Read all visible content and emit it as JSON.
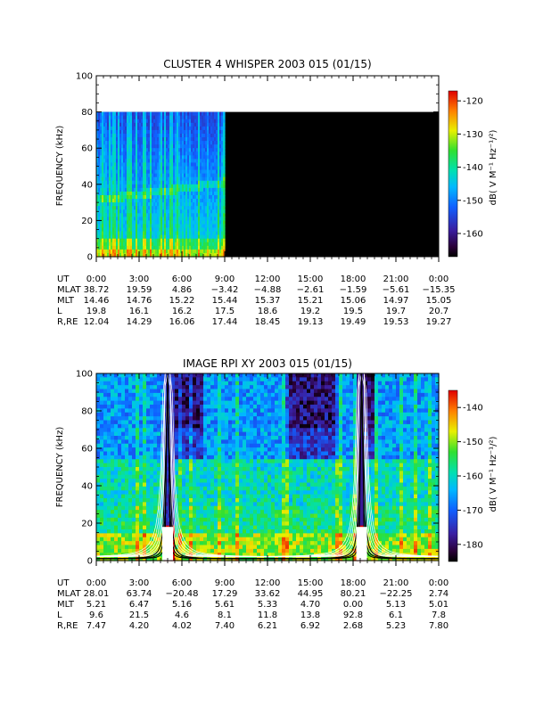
{
  "chart_data": [
    {
      "type": "heatmap",
      "title": "CLUSTER 4 WHISPER 2003 015 (01/15)",
      "ylabel": "FREQUENCY (kHz)",
      "ylim": [
        0,
        100
      ],
      "yticks": [
        "0",
        "20",
        "40",
        "60",
        "80",
        "100"
      ],
      "xlim_hours": [
        0,
        24
      ],
      "xticks": [
        "0:00",
        "3:00",
        "6:00",
        "9:00",
        "12:00",
        "15:00",
        "18:00",
        "21:00",
        "0:00"
      ],
      "data_extent": {
        "hours": [
          0,
          9
        ],
        "freq_khz": [
          0,
          80
        ]
      },
      "colorbar": {
        "label": "dB( V M⁻¹ Hz⁻¹/²)",
        "range": [
          -167,
          -117
        ],
        "ticks": [
          "-120",
          "-130",
          "-140",
          "-150",
          "-160"
        ]
      },
      "ephemeris": {
        "rows": [
          {
            "label": "UT",
            "values": [
              "0:00",
              "3:00",
              "6:00",
              "9:00",
              "12:00",
              "15:00",
              "18:00",
              "21:00",
              "0:00"
            ]
          },
          {
            "label": "MLAT",
            "values": [
              "38.72",
              "19.59",
              "4.86",
              "-3.42",
              "-4.88",
              "-2.61",
              "-1.59",
              "-5.61",
              "-15.35"
            ]
          },
          {
            "label": "MLT",
            "values": [
              "14.46",
              "14.76",
              "15.22",
              "15.44",
              "15.37",
              "15.21",
              "15.06",
              "14.97",
              "15.05"
            ]
          },
          {
            "label": "L",
            "values": [
              "19.8",
              "16.1",
              "16.2",
              "17.5",
              "18.6",
              "19.2",
              "19.5",
              "19.7",
              "20.7"
            ]
          },
          {
            "label": "R,RE",
            "values": [
              "12.04",
              "14.29",
              "16.06",
              "17.44",
              "18.45",
              "19.13",
              "19.49",
              "19.53",
              "19.27"
            ]
          }
        ]
      }
    },
    {
      "type": "heatmap",
      "title": "IMAGE RPI XY 2003 015 (01/15)",
      "ylabel": "FREQUENCY (kHz)",
      "ylim": [
        0,
        100
      ],
      "yticks": [
        "0",
        "20",
        "40",
        "60",
        "80",
        "100"
      ],
      "xlim_hours": [
        0,
        24
      ],
      "xticks": [
        "0:00",
        "3:00",
        "6:00",
        "9:00",
        "12:00",
        "15:00",
        "18:00",
        "21:00",
        "0:00"
      ],
      "colorbar": {
        "label": "dB( V M⁻¹ Hz⁻¹/²)",
        "range": [
          -185,
          -135
        ],
        "ticks": [
          "-140",
          "-150",
          "-160",
          "-170",
          "-180"
        ]
      },
      "ephemeris": {
        "rows": [
          {
            "label": "UT",
            "values": [
              "0:00",
              "3:00",
              "6:00",
              "9:00",
              "12:00",
              "15:00",
              "18:00",
              "21:00",
              "0:00"
            ]
          },
          {
            "label": "MLAT",
            "values": [
              "28.01",
              "63.74",
              "-20.48",
              "17.29",
              "33.62",
              "44.95",
              "80.21",
              "-22.25",
              "2.74"
            ]
          },
          {
            "label": "MLT",
            "values": [
              "5.21",
              "6.47",
              "5.16",
              "5.61",
              "5.33",
              "4.70",
              "0.00",
              "5.13",
              "5.01"
            ]
          },
          {
            "label": "L",
            "values": [
              "9.6",
              "21.5",
              "4.6",
              "8.1",
              "11.8",
              "13.8",
              "92.8",
              "6.1",
              "7.8"
            ]
          },
          {
            "label": "R,RE",
            "values": [
              "7.47",
              "4.20",
              "4.02",
              "7.40",
              "6.21",
              "6.92",
              "2.68",
              "5.23",
              "7.80"
            ]
          }
        ]
      }
    }
  ]
}
